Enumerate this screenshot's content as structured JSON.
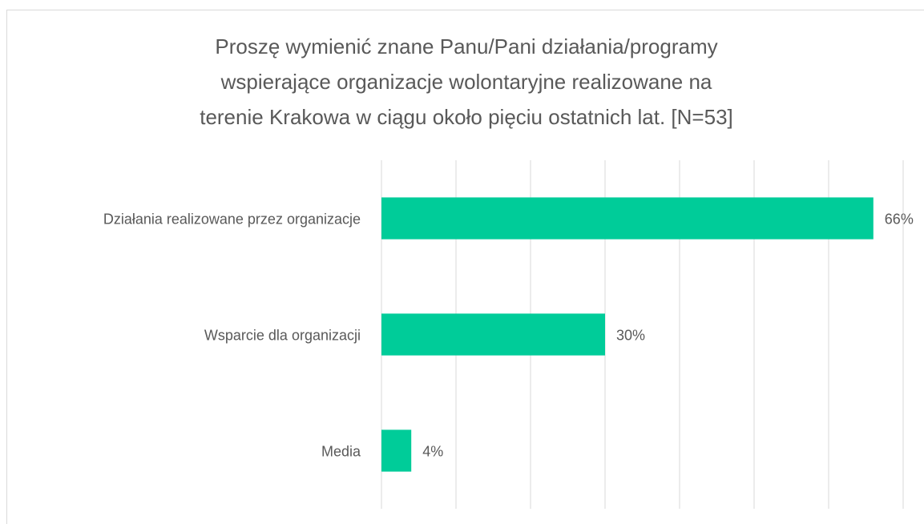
{
  "chart_data": {
    "type": "bar",
    "orientation": "horizontal",
    "title": [
      "Proszę wymienić znane Panu/Pani działania/programy",
      "wspierające organizacje wolontaryjne realizowane na",
      "terenie Krakowa w ciągu około pięciu ostatnich lat. [N=53]"
    ],
    "categories": [
      "Działania realizowane przez organizacje",
      "Wsparcie dla organizacji",
      "Media"
    ],
    "values": [
      66,
      30,
      4
    ],
    "value_labels": [
      "66%",
      "30%",
      "4%"
    ],
    "color": "#00cc99",
    "xlim": [
      0,
      70
    ],
    "xticks": [
      0,
      10,
      20,
      30,
      40,
      50,
      60,
      70
    ],
    "grid": true
  }
}
